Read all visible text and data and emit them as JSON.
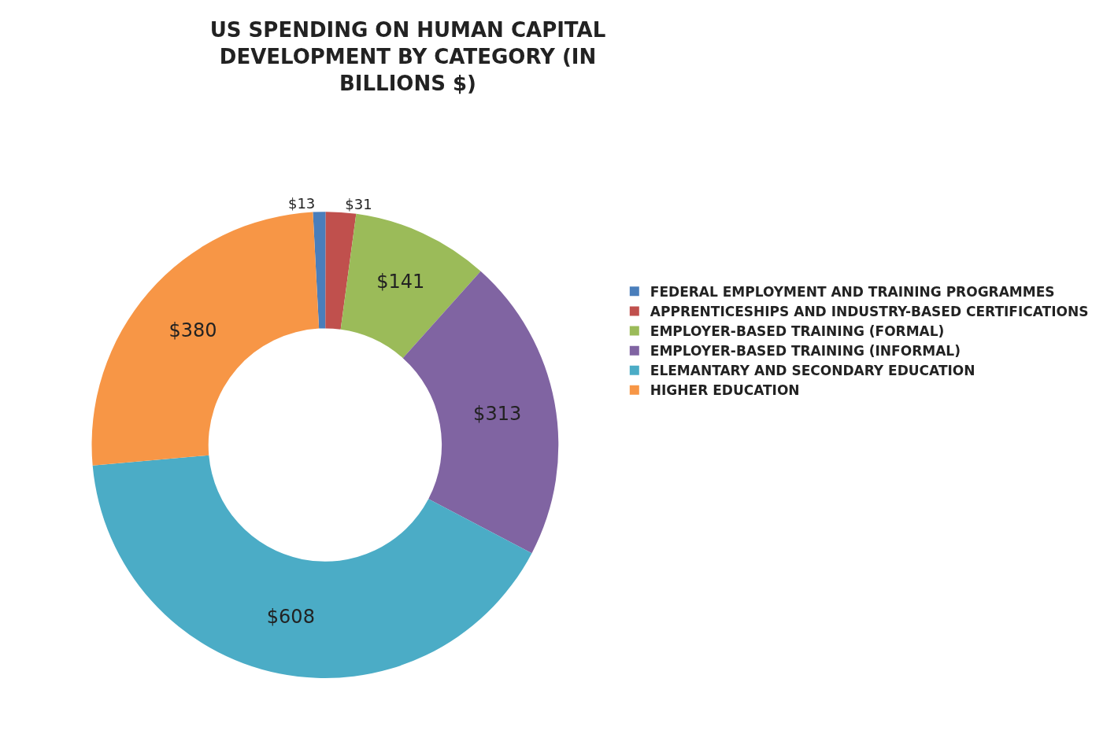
{
  "chart_data": {
    "type": "donut",
    "title": "US SPENDING ON HUMAN CAPITAL DEVELOPMENT BY CATEGORY (IN BILLIONS $)",
    "categories": [
      "FEDERAL EMPLOYMENT AND TRAINING PROGRAMMES",
      "APPRENTICESHIPS AND INDUSTRY-BASED CERTIFICATIONS",
      "EMPLOYER-BASED TRAINING (FORMAL)",
      "EMPLOYER-BASED TRAINING (INFORMAL)",
      "ELEMANTARY AND SECONDARY EDUCATION",
      "HIGHER EDUCATION"
    ],
    "values": [
      13,
      31,
      141,
      313,
      608,
      380
    ],
    "value_labels": [
      "$13",
      "$31",
      "$141",
      "$313",
      "$608",
      "$380"
    ],
    "colors": [
      "#4a7ebb",
      "#c0504d",
      "#9bbb59",
      "#8064a2",
      "#4bacc6",
      "#f79646"
    ],
    "legend": "right"
  }
}
